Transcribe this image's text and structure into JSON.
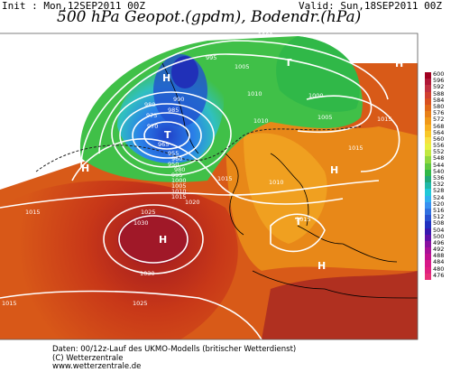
{
  "header": {
    "init": "Init : Mon,12SEP2011 00Z",
    "valid": "Valid: Sun,18SEP2011 00Z",
    "title": "500 hPa Geopot.(gpdm), Bodendr.(hPa)"
  },
  "colorbar": {
    "levels": [
      "600",
      "596",
      "592",
      "588",
      "584",
      "580",
      "576",
      "572",
      "568",
      "564",
      "560",
      "556",
      "552",
      "548",
      "544",
      "540",
      "536",
      "532",
      "528",
      "524",
      "520",
      "516",
      "512",
      "508",
      "504",
      "500",
      "496",
      "492",
      "488",
      "484",
      "480",
      "476"
    ],
    "colors": [
      "#a00020",
      "#b01838",
      "#c03040",
      "#d04030",
      "#d85020",
      "#e06818",
      "#e88018",
      "#f09818",
      "#f8b020",
      "#f8c828",
      "#f8e040",
      "#e8f040",
      "#c0e840",
      "#90d840",
      "#60c840",
      "#30b848",
      "#20a878",
      "#20b8a8",
      "#20c8d8",
      "#30b0f0",
      "#3890f0",
      "#3070e0",
      "#2850d0",
      "#2030c0",
      "#3818b0",
      "#6010a8",
      "#8810a0",
      "#a81098",
      "#c01090",
      "#d81888",
      "#e02080",
      "#e83078"
    ]
  },
  "map_labels": {
    "highs": [
      "H",
      "H",
      "H",
      "H",
      "H",
      "H",
      "H",
      "H",
      "H"
    ],
    "lows": [
      "T",
      "T",
      "T"
    ],
    "isobars": [
      "1000",
      "995",
      "990",
      "985",
      "980",
      "975",
      "970",
      "965",
      "955",
      "960",
      "950",
      "980",
      "995",
      "1000",
      "1005",
      "1010",
      "1015",
      "1020",
      "1025",
      "1030",
      "1030",
      "1025",
      "1015",
      "1015",
      "1005",
      "1010",
      "1000",
      "1005",
      "1010",
      "1015",
      "1015",
      "1010",
      "1015",
      "1015"
    ]
  },
  "footer": {
    "line1": "Daten: 00/12z-Lauf des UKMO-Modells (britischer Wetterdienst)",
    "line2": "(C) Wetterzentrale",
    "line3": "www.wetterzentrale.de"
  }
}
